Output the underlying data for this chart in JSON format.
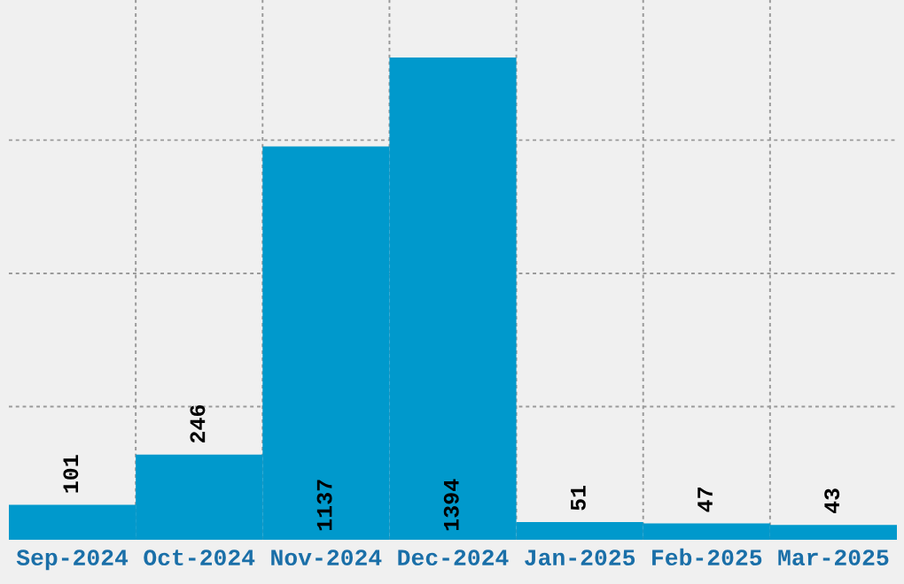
{
  "chart_data": {
    "type": "bar",
    "categories": [
      "Sep-2024",
      "Oct-2024",
      "Nov-2024",
      "Dec-2024",
      "Jan-2025",
      "Feb-2025",
      "Mar-2025"
    ],
    "values": [
      101,
      246,
      1137,
      1394,
      51,
      47,
      43
    ],
    "color": "#0099cc",
    "ylim": [
      0,
      1560
    ],
    "yticks": [
      {
        "value": 385,
        "label": null
      },
      {
        "value": 770,
        "label": null
      },
      {
        "value": 1155,
        "label": null
      }
    ],
    "data_labels": true,
    "grid": true,
    "tick_labels": "x"
  }
}
